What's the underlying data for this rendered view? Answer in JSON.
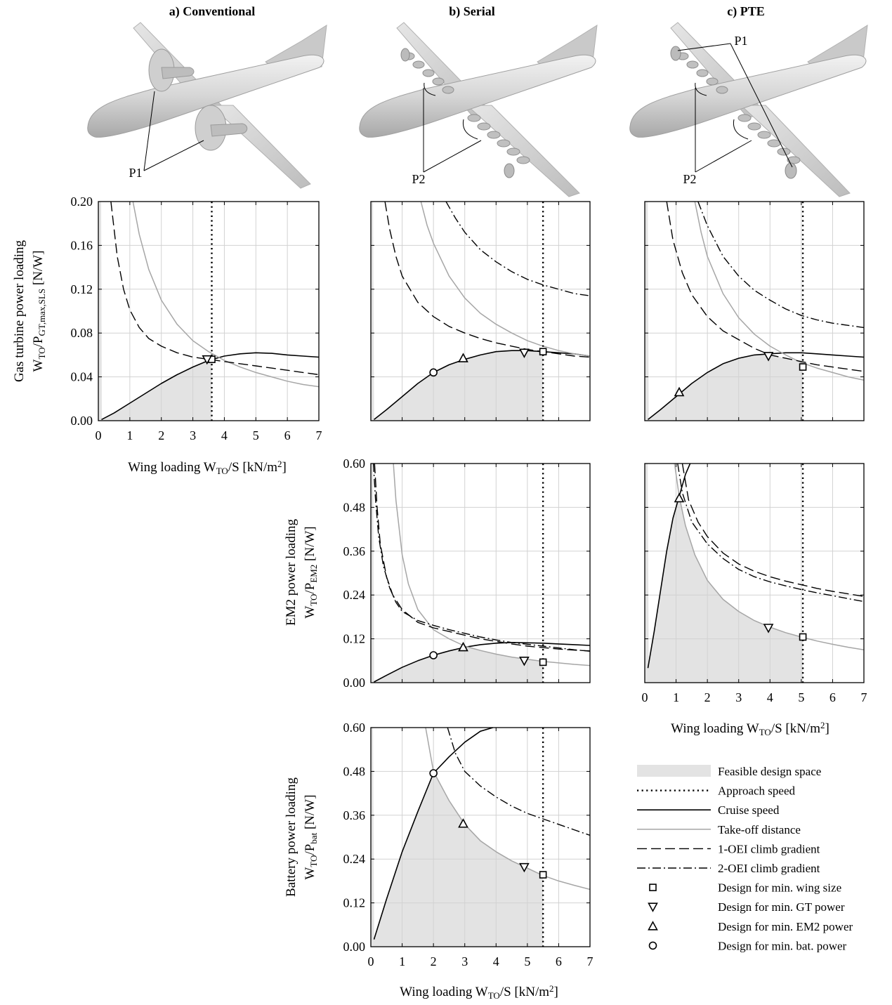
{
  "figure": {
    "columns": [
      {
        "title": "a) Conventional",
        "callouts": [
          "P1"
        ]
      },
      {
        "title": "b) Serial",
        "callouts": [
          "P2"
        ]
      },
      {
        "title": "c) PTE",
        "callouts": [
          "P1",
          "P2"
        ]
      }
    ],
    "x_label": "Wing loading W_TO/S [kN/m^2]",
    "y_labels": {
      "gas_turbine": [
        "Gas turbine power loading",
        "W_TO/P_GT,max,SLS [N/W]"
      ],
      "em2": [
        "EM2 power loading",
        "W_TO/P_EM2 [N/W]"
      ],
      "battery": [
        "Battery power loading",
        "W_TO/P_bat [N/W]"
      ]
    }
  },
  "legend": {
    "items": [
      {
        "key": "feasible",
        "label": "Feasible design space"
      },
      {
        "key": "approach",
        "label": "Approach speed"
      },
      {
        "key": "cruise",
        "label": "Cruise speed"
      },
      {
        "key": "takeoff",
        "label": "Take-off distance"
      },
      {
        "key": "oei1",
        "label": "1-OEI climb gradient"
      },
      {
        "key": "oei2",
        "label": "2-OEI climb gradient"
      },
      {
        "key": "min_wing",
        "label": "Design for min. wing size"
      },
      {
        "key": "min_gt",
        "label": "Design for min. GT power"
      },
      {
        "key": "min_em2",
        "label": "Design for min. EM2 power"
      },
      {
        "key": "min_bat",
        "label": "Design for min. bat. power"
      }
    ],
    "colors": {
      "feasible": "#e3e3e3",
      "takeoff": "#a6a6a6",
      "lines": "#000000"
    }
  },
  "chart_data": [
    {
      "id": "a_gt",
      "type": "line",
      "xlim": [
        0,
        7
      ],
      "ylim": [
        0,
        0.2
      ],
      "xticks": [
        "0",
        "1",
        "2",
        "3",
        "4",
        "5",
        "6",
        "7"
      ],
      "yticks": [
        "0.00",
        "0.04",
        "0.08",
        "0.12",
        "0.16",
        "0.20"
      ],
      "approach_speed_x": 3.6,
      "series": [
        {
          "name": "Cruise speed",
          "x": [
            0.1,
            0.5,
            1,
            1.5,
            2,
            2.5,
            3,
            3.5,
            4,
            4.5,
            5,
            5.5,
            6,
            6.5,
            7
          ],
          "y": [
            0.001,
            0.007,
            0.016,
            0.025,
            0.034,
            0.042,
            0.049,
            0.055,
            0.059,
            0.061,
            0.062,
            0.0615,
            0.06,
            0.059,
            0.058
          ]
        },
        {
          "name": "Take-off distance",
          "x": [
            1.1,
            1.3,
            1.6,
            2,
            2.5,
            3,
            3.5,
            4,
            4.5,
            5,
            5.5,
            6,
            6.5,
            7
          ],
          "y": [
            0.2,
            0.17,
            0.138,
            0.11,
            0.088,
            0.073,
            0.063,
            0.055,
            0.049,
            0.044,
            0.04,
            0.036,
            0.033,
            0.031
          ]
        },
        {
          "name": "1-OEI climb gradient",
          "x": [
            0.4,
            0.6,
            0.8,
            1,
            1.3,
            1.6,
            2,
            2.5,
            3,
            3.5,
            4,
            4.5,
            5,
            5.5,
            6,
            6.5,
            7
          ],
          "y": [
            0.2,
            0.15,
            0.12,
            0.101,
            0.085,
            0.075,
            0.068,
            0.062,
            0.058,
            0.056,
            0.054,
            0.052,
            0.05,
            0.048,
            0.046,
            0.044,
            0.042
          ]
        }
      ],
      "designs": [
        {
          "name": "Design for min. wing size",
          "x": 3.6,
          "y": 0.056
        },
        {
          "name": "Design for min. GT power",
          "x": 3.45,
          "y": 0.056
        }
      ]
    },
    {
      "id": "b_gt",
      "type": "line",
      "xlim": [
        0,
        7
      ],
      "ylim": [
        0,
        0.2
      ],
      "xticks": [],
      "yticks": [],
      "approach_speed_x": 5.5,
      "series": [
        {
          "name": "Cruise speed",
          "x": [
            0.1,
            0.5,
            1,
            1.5,
            2,
            2.5,
            3,
            3.5,
            4,
            4.5,
            5,
            5.5,
            6,
            6.5,
            7
          ],
          "y": [
            0.001,
            0.01,
            0.022,
            0.034,
            0.044,
            0.051,
            0.056,
            0.06,
            0.063,
            0.064,
            0.064,
            0.063,
            0.062,
            0.061,
            0.059
          ]
        },
        {
          "name": "Take-off distance",
          "x": [
            1.6,
            1.8,
            2,
            2.5,
            3,
            3.5,
            4,
            4.5,
            5,
            5.5,
            6,
            6.5,
            7
          ],
          "y": [
            0.2,
            0.178,
            0.162,
            0.132,
            0.112,
            0.098,
            0.088,
            0.08,
            0.073,
            0.068,
            0.064,
            0.061,
            0.059
          ]
        },
        {
          "name": "1-OEI climb gradient",
          "x": [
            0.45,
            0.6,
            0.8,
            1,
            1.5,
            2,
            2.5,
            3,
            3.5,
            4,
            4.5,
            5,
            5.5,
            6,
            6.5,
            7
          ],
          "y": [
            0.2,
            0.175,
            0.15,
            0.132,
            0.108,
            0.095,
            0.086,
            0.08,
            0.075,
            0.071,
            0.068,
            0.065,
            0.063,
            0.061,
            0.059,
            0.058
          ]
        },
        {
          "name": "2-OEI climb gradient",
          "x": [
            2.4,
            2.7,
            3,
            3.5,
            4,
            4.5,
            5,
            5.5,
            6,
            6.5,
            7
          ],
          "y": [
            0.2,
            0.185,
            0.172,
            0.156,
            0.145,
            0.136,
            0.129,
            0.124,
            0.12,
            0.116,
            0.114
          ]
        }
      ],
      "designs": [
        {
          "name": "Design for min. wing size",
          "x": 5.5,
          "y": 0.063
        },
        {
          "name": "Design for min. GT power",
          "x": 4.9,
          "y": 0.062
        },
        {
          "name": "Design for min. EM2 power",
          "x": 2.95,
          "y": 0.057
        },
        {
          "name": "Design for min. bat. power",
          "x": 2.0,
          "y": 0.044
        }
      ]
    },
    {
      "id": "c_gt",
      "type": "line",
      "xlim": [
        0,
        7
      ],
      "ylim": [
        0,
        0.2
      ],
      "xticks": [],
      "yticks": [],
      "approach_speed_x": 5.05,
      "series": [
        {
          "name": "Cruise speed",
          "x": [
            0.1,
            0.5,
            1,
            1.5,
            2,
            2.5,
            3,
            3.5,
            4,
            4.5,
            5,
            5.5,
            6,
            6.5,
            7
          ],
          "y": [
            0.001,
            0.01,
            0.022,
            0.034,
            0.044,
            0.052,
            0.057,
            0.06,
            0.061,
            0.062,
            0.062,
            0.061,
            0.06,
            0.059,
            0.058
          ]
        },
        {
          "name": "Take-off distance",
          "x": [
            1.6,
            1.8,
            2,
            2.5,
            3,
            3.5,
            4,
            4.5,
            5,
            5.5,
            6,
            6.5,
            7
          ],
          "y": [
            0.2,
            0.172,
            0.15,
            0.116,
            0.094,
            0.079,
            0.068,
            0.06,
            0.053,
            0.048,
            0.044,
            0.04,
            0.037
          ]
        },
        {
          "name": "1-OEI climb gradient",
          "x": [
            0.7,
            0.9,
            1.2,
            1.5,
            2,
            2.5,
            3,
            3.5,
            4,
            4.5,
            5,
            5.5,
            6,
            6.5,
            7
          ],
          "y": [
            0.2,
            0.165,
            0.135,
            0.115,
            0.095,
            0.082,
            0.074,
            0.066,
            0.06,
            0.057,
            0.054,
            0.051,
            0.049,
            0.047,
            0.045
          ]
        },
        {
          "name": "2-OEI climb gradient",
          "x": [
            1.7,
            2,
            2.5,
            3,
            3.5,
            4,
            4.5,
            5,
            5.5,
            6,
            6.5,
            7
          ],
          "y": [
            0.2,
            0.178,
            0.15,
            0.132,
            0.119,
            0.11,
            0.102,
            0.096,
            0.092,
            0.089,
            0.087,
            0.085
          ]
        }
      ],
      "designs": [
        {
          "name": "Design for min. wing size",
          "x": 5.05,
          "y": 0.049
        },
        {
          "name": "Design for min. GT power",
          "x": 3.95,
          "y": 0.059
        },
        {
          "name": "Design for min. EM2 power",
          "x": 1.1,
          "y": 0.026
        }
      ]
    },
    {
      "id": "b_em2",
      "type": "line",
      "xlim": [
        0,
        7
      ],
      "ylim": [
        0,
        0.6
      ],
      "xticks": [],
      "yticks": [
        "0.00",
        "0.12",
        "0.24",
        "0.36",
        "0.48",
        "0.60"
      ],
      "approach_speed_x": 5.5,
      "series": [
        {
          "name": "Cruise speed",
          "x": [
            0.1,
            0.5,
            1,
            1.5,
            2,
            2.5,
            3,
            3.5,
            4,
            4.5,
            5,
            5.5,
            6,
            6.5,
            7
          ],
          "y": [
            0.002,
            0.02,
            0.042,
            0.06,
            0.075,
            0.087,
            0.097,
            0.104,
            0.108,
            0.11,
            0.109,
            0.108,
            0.106,
            0.104,
            0.102
          ]
        },
        {
          "name": "Take-off distance",
          "x": [
            0.72,
            0.8,
            1,
            1.2,
            1.5,
            2,
            2.5,
            3,
            3.5,
            4,
            4.5,
            5,
            5.5,
            6,
            6.5,
            7
          ],
          "y": [
            0.6,
            0.5,
            0.35,
            0.27,
            0.2,
            0.145,
            0.12,
            0.1,
            0.088,
            0.078,
            0.07,
            0.064,
            0.058,
            0.054,
            0.05,
            0.047
          ]
        },
        {
          "name": "1-OEI climb gradient",
          "x": [
            0.12,
            0.2,
            0.3,
            0.5,
            0.7,
            1,
            1.5,
            2,
            2.5,
            3,
            3.5,
            4,
            4.5,
            5,
            5.5,
            6,
            6.5,
            7
          ],
          "y": [
            0.6,
            0.48,
            0.38,
            0.29,
            0.24,
            0.2,
            0.165,
            0.15,
            0.14,
            0.13,
            0.12,
            0.113,
            0.106,
            0.1,
            0.096,
            0.092,
            0.089,
            0.087
          ]
        },
        {
          "name": "2-OEI climb gradient",
          "x": [
            0.08,
            0.15,
            0.25,
            0.4,
            0.6,
            0.8,
            1,
            1.5,
            2,
            2.5,
            3,
            3.5,
            4,
            4.5,
            5,
            5.5,
            6,
            6.5,
            7
          ],
          "y": [
            0.6,
            0.5,
            0.4,
            0.32,
            0.26,
            0.22,
            0.195,
            0.17,
            0.157,
            0.145,
            0.135,
            0.125,
            0.117,
            0.11,
            0.105,
            0.1,
            0.095,
            0.09,
            0.086
          ]
        }
      ],
      "designs": [
        {
          "name": "Design for min. wing size",
          "x": 5.5,
          "y": 0.056
        },
        {
          "name": "Design for min. GT power",
          "x": 4.9,
          "y": 0.06
        },
        {
          "name": "Design for min. EM2 power",
          "x": 2.95,
          "y": 0.097
        },
        {
          "name": "Design for min. bat. power",
          "x": 2.0,
          "y": 0.075
        }
      ]
    },
    {
      "id": "c_em2",
      "type": "line",
      "xlim": [
        0,
        7
      ],
      "ylim": [
        0,
        0.6
      ],
      "xticks": [
        "0",
        "1",
        "2",
        "3",
        "4",
        "5",
        "6",
        "7"
      ],
      "yticks": [],
      "approach_speed_x": 5.05,
      "series": [
        {
          "name": "Cruise speed",
          "x": [
            0.1,
            0.3,
            0.5,
            0.7,
            0.9,
            1.1,
            1.3,
            1.45
          ],
          "y": [
            0.04,
            0.14,
            0.25,
            0.36,
            0.45,
            0.51,
            0.57,
            0.6
          ]
        },
        {
          "name": "Take-off distance",
          "x": [
            0.95,
            1,
            1.1,
            1.3,
            1.6,
            2,
            2.5,
            3,
            3.5,
            4,
            4.5,
            5,
            5.5,
            6,
            6.5,
            7
          ],
          "y": [
            0.6,
            0.57,
            0.51,
            0.43,
            0.35,
            0.28,
            0.228,
            0.195,
            0.17,
            0.152,
            0.137,
            0.125,
            0.114,
            0.105,
            0.097,
            0.09
          ]
        },
        {
          "name": "1-OEI climb gradient",
          "x": [
            1.2,
            1.4,
            1.7,
            2,
            2.5,
            3,
            3.5,
            4,
            4.5,
            5,
            5.5,
            6,
            6.5,
            7
          ],
          "y": [
            0.6,
            0.5,
            0.44,
            0.4,
            0.355,
            0.325,
            0.305,
            0.29,
            0.278,
            0.268,
            0.258,
            0.25,
            0.243,
            0.236
          ]
        },
        {
          "name": "2-OEI climb gradient",
          "x": [
            1.05,
            1.2,
            1.5,
            2,
            2.5,
            3,
            3.5,
            4,
            4.5,
            5,
            5.5,
            6,
            6.5,
            7
          ],
          "y": [
            0.6,
            0.52,
            0.44,
            0.38,
            0.34,
            0.31,
            0.29,
            0.276,
            0.265,
            0.255,
            0.246,
            0.238,
            0.23,
            0.222
          ]
        }
      ],
      "designs": [
        {
          "name": "Design for min. wing size",
          "x": 5.05,
          "y": 0.125
        },
        {
          "name": "Design for min. GT power",
          "x": 3.95,
          "y": 0.15
        },
        {
          "name": "Design for min. EM2 power",
          "x": 1.1,
          "y": 0.505
        }
      ]
    },
    {
      "id": "b_bat",
      "type": "line",
      "xlim": [
        0,
        7
      ],
      "ylim": [
        0,
        0.6
      ],
      "xticks": [
        "0",
        "1",
        "2",
        "3",
        "4",
        "5",
        "6",
        "7"
      ],
      "yticks": [
        "0.00",
        "0.12",
        "0.24",
        "0.36",
        "0.48",
        "0.60"
      ],
      "approach_speed_x": 5.5,
      "series": [
        {
          "name": "Cruise speed",
          "x": [
            0.1,
            0.5,
            1,
            1.5,
            2,
            2.5,
            3,
            3.5,
            3.9
          ],
          "y": [
            0.02,
            0.13,
            0.26,
            0.37,
            0.475,
            0.52,
            0.56,
            0.59,
            0.6
          ]
        },
        {
          "name": "Take-off distance",
          "x": [
            1.75,
            2,
            2.5,
            3,
            3.5,
            4,
            4.5,
            5,
            5.5,
            6,
            6.5,
            7
          ],
          "y": [
            0.6,
            0.48,
            0.4,
            0.335,
            0.29,
            0.26,
            0.235,
            0.215,
            0.195,
            0.18,
            0.168,
            0.157
          ]
        },
        {
          "name": "2-OEI climb gradient",
          "x": [
            2.45,
            2.7,
            3,
            3.5,
            4,
            4.5,
            5,
            5.5,
            6,
            6.5,
            7
          ],
          "y": [
            0.6,
            0.53,
            0.48,
            0.44,
            0.41,
            0.385,
            0.365,
            0.35,
            0.335,
            0.32,
            0.305
          ]
        }
      ],
      "designs": [
        {
          "name": "Design for min. wing size",
          "x": 5.5,
          "y": 0.197
        },
        {
          "name": "Design for min. GT power",
          "x": 4.9,
          "y": 0.218
        },
        {
          "name": "Design for min. EM2 power",
          "x": 2.95,
          "y": 0.337
        },
        {
          "name": "Design for min. bat. power",
          "x": 2.0,
          "y": 0.475
        }
      ]
    }
  ]
}
